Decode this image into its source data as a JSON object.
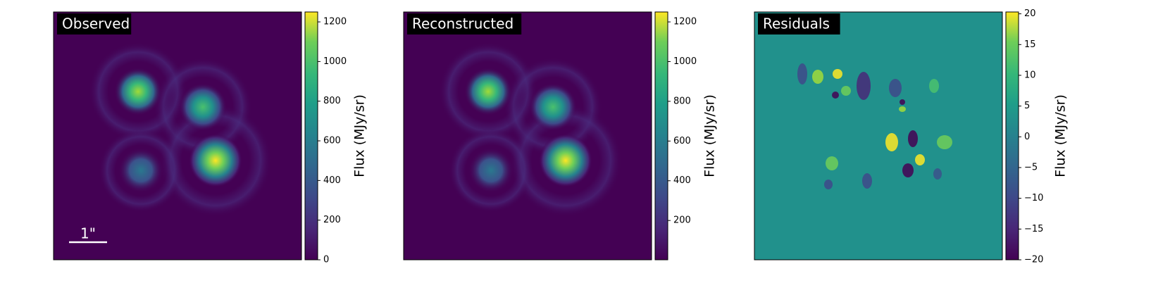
{
  "chart_data": [
    {
      "type": "image",
      "title": "Observed",
      "colorbar_label": "Flux (MJy/sr)",
      "colormap": "viridis",
      "clim": [
        0,
        1250
      ],
      "cticks": [
        0,
        200,
        400,
        600,
        800,
        1000,
        1200
      ],
      "scalebar_label": "1\""
    },
    {
      "type": "image",
      "title": "Reconstructed",
      "colorbar_label": "Flux (MJy/sr)",
      "colormap": "viridis",
      "clim": [
        2,
        1250
      ],
      "cticks": [
        200,
        400,
        600,
        800,
        1000,
        1200
      ]
    },
    {
      "type": "image",
      "title": "Residuals",
      "colorbar_label": "Flux (MJy/sr)",
      "colormap": "viridis",
      "clim": [
        -20,
        20.3
      ],
      "cticks": [
        {
          "value": -20,
          "label": "−20"
        },
        {
          "value": -15,
          "label": "−15"
        },
        {
          "value": -10,
          "label": "−10"
        },
        {
          "value": -5,
          "label": "−5"
        },
        0,
        5,
        10,
        15,
        20
      ]
    }
  ]
}
